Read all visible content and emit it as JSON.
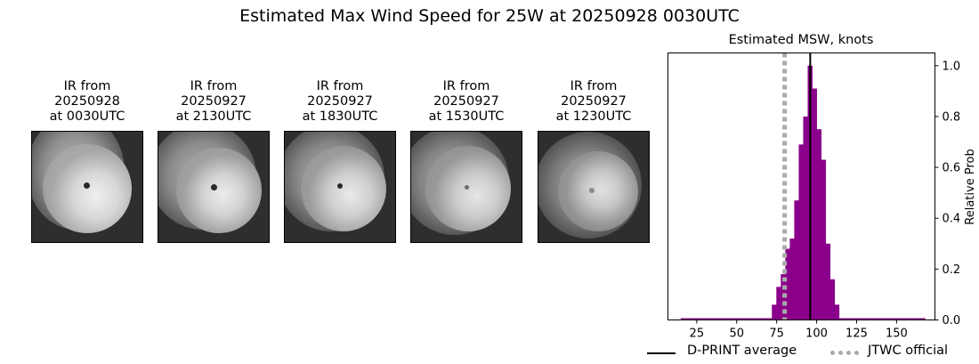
{
  "suptitle": "Estimated Max Wind Speed for 25W at 20250928 0030UTC",
  "ir_panels": [
    {
      "line1": "IR from",
      "line2": "20250928",
      "line3": "at 0030UTC"
    },
    {
      "line1": "IR from",
      "line2": "20250927",
      "line3": "at 2130UTC"
    },
    {
      "line1": "IR from",
      "line2": "20250927",
      "line3": "at 1830UTC"
    },
    {
      "line1": "IR from",
      "line2": "20250927",
      "line3": "at 1530UTC"
    },
    {
      "line1": "IR from",
      "line2": "20250927",
      "line3": "at 1230UTC"
    }
  ],
  "chart_data": {
    "type": "bar",
    "title": "Estimated MSW, knots",
    "xlabel": "",
    "ylabel": "Relative Prob",
    "xlim": [
      7,
      174
    ],
    "ylim": [
      0,
      1.05
    ],
    "xticks": [
      25,
      50,
      75,
      100,
      125,
      150
    ],
    "yticks": [
      "0.0",
      "0.2",
      "0.4",
      "0.6",
      "0.8",
      "1.0"
    ],
    "bin_width": 2.8,
    "bar_color": "#8b008b",
    "bins": [
      {
        "x": 73.4,
        "value": 0.06
      },
      {
        "x": 76.2,
        "value": 0.13
      },
      {
        "x": 79.0,
        "value": 0.18
      },
      {
        "x": 81.8,
        "value": 0.28
      },
      {
        "x": 84.6,
        "value": 0.32
      },
      {
        "x": 87.4,
        "value": 0.47
      },
      {
        "x": 90.2,
        "value": 0.69
      },
      {
        "x": 93.0,
        "value": 0.8
      },
      {
        "x": 95.8,
        "value": 1.0
      },
      {
        "x": 98.6,
        "value": 0.91
      },
      {
        "x": 101.4,
        "value": 0.75
      },
      {
        "x": 104.2,
        "value": 0.63
      },
      {
        "x": 107.0,
        "value": 0.3
      },
      {
        "x": 109.8,
        "value": 0.16
      },
      {
        "x": 112.6,
        "value": 0.06
      }
    ],
    "baseline_range": [
      15,
      168
    ],
    "dprint_average": 96,
    "jtwc_official": 80,
    "legend": {
      "dprint_label": "D-PRINT average",
      "jtwc_label": "JTWC official"
    },
    "legend_position": "bottom",
    "grid": false
  }
}
